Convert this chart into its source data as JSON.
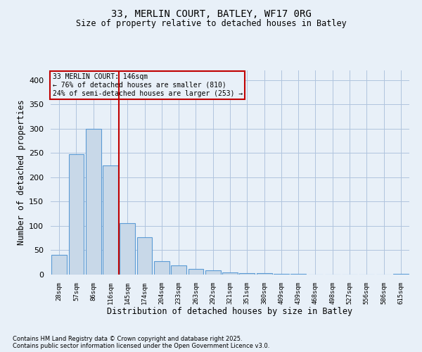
{
  "title1": "33, MERLIN COURT, BATLEY, WF17 0RG",
  "title2": "Size of property relative to detached houses in Batley",
  "xlabel": "Distribution of detached houses by size in Batley",
  "ylabel": "Number of detached properties",
  "categories": [
    "28sqm",
    "57sqm",
    "86sqm",
    "116sqm",
    "145sqm",
    "174sqm",
    "204sqm",
    "233sqm",
    "263sqm",
    "292sqm",
    "321sqm",
    "351sqm",
    "380sqm",
    "409sqm",
    "439sqm",
    "468sqm",
    "498sqm",
    "527sqm",
    "556sqm",
    "586sqm",
    "615sqm"
  ],
  "values": [
    40,
    248,
    300,
    225,
    106,
    77,
    28,
    19,
    11,
    8,
    4,
    3,
    3,
    2,
    2,
    0,
    0,
    0,
    0,
    0,
    2
  ],
  "bar_color": "#c8d8e8",
  "bar_edge_color": "#5b9bd5",
  "vline_x_index": 4,
  "vline_color": "#c00000",
  "annotation_line1": "33 MERLIN COURT: 146sqm",
  "annotation_line2": "← 76% of detached houses are smaller (810)",
  "annotation_line3": "24% of semi-detached houses are larger (253) →",
  "annotation_box_color": "#c00000",
  "ylim": [
    0,
    420
  ],
  "yticks": [
    0,
    50,
    100,
    150,
    200,
    250,
    300,
    350,
    400
  ],
  "grid_color": "#b0c4de",
  "background_color": "#e8f0f8",
  "footnote1": "Contains HM Land Registry data © Crown copyright and database right 2025.",
  "footnote2": "Contains public sector information licensed under the Open Government Licence v3.0."
}
